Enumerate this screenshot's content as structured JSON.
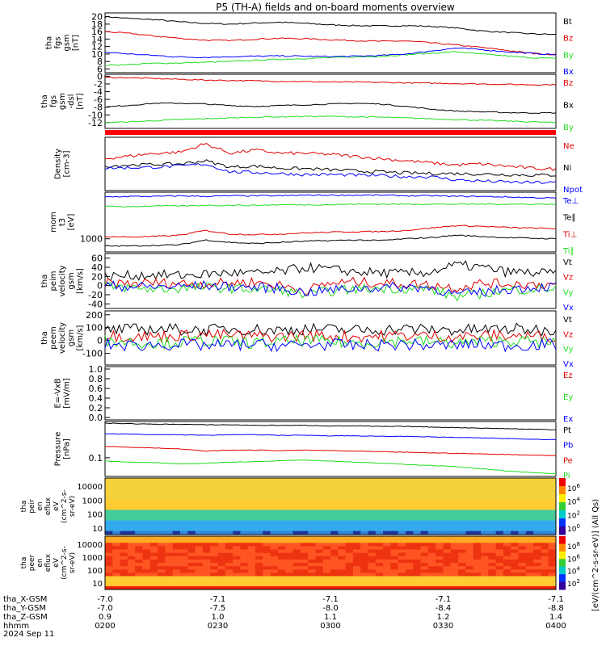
{
  "title": "P5 (TH-A) fields and on-board moments overview",
  "date_label": "2024 Sep 11",
  "colors": {
    "black": "#000000",
    "red": "#e00000",
    "green": "#22dd22",
    "blue": "#0000ff"
  },
  "chart_data": [
    {
      "type": "line",
      "id": "fgs_gsm",
      "ylabel_lines": [
        "tha",
        "fgs",
        "gsm",
        "[nT]"
      ],
      "yticks": [
        "20",
        "18",
        "16",
        "14",
        "12",
        "10",
        "8",
        "6"
      ],
      "ylim": [
        5,
        21
      ],
      "series": [
        {
          "name": "Bt",
          "color": "black",
          "values": [
            20,
            19.5,
            19.2,
            18.6,
            18.2,
            18,
            18.3,
            18.5,
            18.2,
            17.8,
            17.6,
            17.5,
            17.6,
            17.4,
            17,
            16.2,
            15.8,
            15.4,
            15.2
          ]
        },
        {
          "name": "Bz",
          "color": "red",
          "values": [
            16,
            15.5,
            14.8,
            14.2,
            13.7,
            13.6,
            14,
            14.2,
            14.1,
            13.8,
            13.6,
            13.4,
            13.5,
            13,
            12.4,
            11.8,
            11,
            10.2,
            9.8
          ]
        },
        {
          "name": "By",
          "color": "green",
          "values": [
            7,
            7.2,
            7.5,
            7.6,
            7.8,
            8,
            8.3,
            8.6,
            8.8,
            9,
            9.2,
            9.4,
            9.8,
            10.2,
            10.6,
            10,
            9.5,
            9,
            8.8
          ]
        },
        {
          "name": "Bx",
          "color": "blue",
          "values": [
            10.5,
            10,
            9.6,
            9.2,
            9.1,
            9.3,
            9.4,
            9.5,
            9.4,
            9.3,
            9.4,
            9.6,
            10,
            10.8,
            11.6,
            11.2,
            10.6,
            10.2,
            9.8
          ]
        }
      ]
    },
    {
      "type": "line",
      "id": "fgs_gsm_dsl",
      "ylabel_lines": [
        "tha",
        "fgs",
        "gsm",
        "-dsl",
        "[nT]"
      ],
      "yticks": [
        "0",
        "-2",
        "-4",
        "-6",
        "-8",
        "-10",
        "-12"
      ],
      "ylim": [
        -13.5,
        0.5
      ],
      "series": [
        {
          "name": "Bz",
          "color": "red",
          "values": [
            -0.3,
            -0.4,
            -0.6,
            -0.8,
            -1,
            -1.1,
            -1.2,
            -1.3,
            -1.4,
            -1.5,
            -1.5,
            -1.6,
            -1.7,
            -1.8,
            -1.9,
            -2,
            -2.1,
            -2.2,
            -2.2
          ]
        },
        {
          "name": "Bx",
          "color": "black",
          "values": [
            -8,
            -7.5,
            -7,
            -7,
            -7.2,
            -7.6,
            -7.8,
            -7.6,
            -7.4,
            -7.2,
            -7,
            -7.2,
            -7.8,
            -8.5,
            -9,
            -9.2,
            -9.4,
            -9.5,
            -9.5
          ]
        },
        {
          "name": "By",
          "color": "green",
          "values": [
            -12,
            -11.8,
            -11.5,
            -11.2,
            -11,
            -10.8,
            -10.6,
            -10.5,
            -10.4,
            -10.4,
            -10.5,
            -10.6,
            -10.8,
            -11,
            -11.2,
            -11.4,
            -11.6,
            -11.8,
            -12
          ]
        }
      ]
    },
    {
      "type": "line",
      "id": "density",
      "ylabel_lines": [
        "Density",
        "[cm-3]"
      ],
      "yticks": [],
      "ylim": [
        0,
        10
      ],
      "series": [
        {
          "name": "Ne",
          "color": "red",
          "values": [
            6,
            6.5,
            7,
            7.2,
            8.8,
            7,
            7.6,
            7,
            7,
            6.8,
            6.4,
            6,
            5.6,
            5.2,
            4.8,
            5,
            4.6,
            4.2,
            4
          ]
        },
        {
          "name": "Ni",
          "color": "black",
          "values": [
            4.6,
            4.8,
            4.9,
            5,
            5.6,
            4.4,
            4.6,
            4.2,
            4.1,
            3.9,
            3.7,
            3.5,
            3.3,
            3.2,
            3.2,
            3.1,
            3,
            2.9,
            2.9
          ]
        },
        {
          "name": "Npot",
          "color": "blue",
          "values": [
            4.2,
            4.3,
            4.4,
            4.6,
            5,
            3.5,
            3.4,
            3.2,
            3,
            3,
            2.9,
            2.8,
            2.6,
            2.6,
            2,
            1.8,
            1.6,
            1.5,
            1.5
          ]
        }
      ]
    },
    {
      "type": "line",
      "id": "mom_temp",
      "ylabel_lines": [
        "mom",
        "t3",
        "[eV]"
      ],
      "yticks": [
        "1000"
      ],
      "ylim": [
        0,
        10
      ],
      "series": [
        {
          "name": "Te⊥",
          "color": "blue",
          "values": [
            9.2,
            9.3,
            9.3,
            9.4,
            9.3,
            9.4,
            9.4,
            9.4,
            9.5,
            9.5,
            9.5,
            9.5,
            9.4,
            9.4,
            9.3,
            9.3,
            9.2,
            9.1,
            9
          ]
        },
        {
          "name": "Te∥",
          "color": "black",
          "values": [
            1,
            1,
            1.1,
            1.2,
            2,
            1.6,
            1.4,
            1.6,
            1.8,
            1.9,
            2,
            1.9,
            2.2,
            2.4,
            2.8,
            2.6,
            2.4,
            2.3,
            2.2
          ]
        },
        {
          "name": "Ti⊥",
          "color": "red",
          "values": [
            2.6,
            2.5,
            2.6,
            2.8,
            3.6,
            3,
            2.9,
            3,
            3.2,
            3.3,
            3.4,
            3.4,
            3.6,
            4,
            4.4,
            4.3,
            4.1,
            4,
            3.9
          ]
        },
        {
          "name": "Ti∥",
          "color": "green",
          "values": [
            7.6,
            7.6,
            7.7,
            7.7,
            7.8,
            7.8,
            7.8,
            7.9,
            7.9,
            7.9,
            8,
            8,
            8,
            8,
            8,
            8,
            8,
            8,
            8
          ]
        }
      ]
    },
    {
      "type": "line",
      "id": "peim_velocity",
      "ylabel_lines": [
        "tha",
        "peim",
        "velocity",
        "gsm",
        "[km/s]"
      ],
      "yticks": [
        "60",
        "40",
        "20",
        "0",
        "-20",
        "-40"
      ],
      "ylim": [
        -50,
        70
      ],
      "series": [
        {
          "name": "Vt",
          "color": "black",
          "values": [
            20,
            22,
            24,
            22,
            25,
            28,
            26,
            30,
            40,
            35,
            30,
            28,
            26,
            30,
            45,
            40,
            30,
            28,
            26
          ]
        },
        {
          "name": "Vz",
          "color": "red",
          "values": [
            5,
            4,
            6,
            5,
            4,
            6,
            8,
            0,
            -10,
            5,
            8,
            6,
            4,
            2,
            -5,
            5,
            4,
            3,
            2
          ]
        },
        {
          "name": "Vy",
          "color": "green",
          "values": [
            -2,
            -5,
            -8,
            -6,
            -4,
            -6,
            -8,
            -10,
            -20,
            -12,
            -8,
            -6,
            -6,
            -8,
            -25,
            -18,
            -10,
            -8,
            -6
          ]
        },
        {
          "name": "Vx",
          "color": "blue",
          "values": [
            0,
            -2,
            -3,
            -2,
            0,
            -2,
            -4,
            -6,
            -15,
            -10,
            -6,
            -4,
            -3,
            -4,
            -20,
            -15,
            -8,
            -4,
            -2
          ]
        }
      ]
    },
    {
      "type": "line",
      "id": "peem_velocity",
      "ylabel_lines": [
        "tha",
        "peem",
        "velocity",
        "gsm",
        "[km/s]"
      ],
      "yticks": [
        "200",
        "100",
        "0",
        "-100"
      ],
      "ylim": [
        -190,
        230
      ],
      "series": [
        {
          "name": "Vt",
          "color": "black",
          "values": [
            80,
            85,
            90,
            85,
            80,
            90,
            85,
            80,
            90,
            85,
            80,
            85,
            90,
            85,
            80,
            85,
            90,
            85,
            80
          ]
        },
        {
          "name": "Vz",
          "color": "red",
          "values": [
            40,
            35,
            30,
            40,
            45,
            40,
            35,
            30,
            40,
            35,
            30,
            35,
            40,
            35,
            30,
            35,
            40,
            35,
            30
          ]
        },
        {
          "name": "Vy",
          "color": "green",
          "values": [
            0,
            -10,
            -20,
            -10,
            0,
            -10,
            -20,
            -10,
            0,
            -10,
            -20,
            -10,
            0,
            -10,
            -20,
            -10,
            0,
            -10,
            -20
          ]
        },
        {
          "name": "Vx",
          "color": "blue",
          "values": [
            -30,
            -40,
            -35,
            -30,
            -40,
            -35,
            -30,
            -40,
            -35,
            -30,
            -40,
            -35,
            -30,
            -40,
            -35,
            -30,
            -40,
            -35,
            -30
          ]
        }
      ]
    },
    {
      "type": "line",
      "id": "efield",
      "ylabel_lines": [
        "E=-VxB",
        "[mV/m]"
      ],
      "yticks": [
        "1.0",
        "0.8",
        "0.6",
        "0.4",
        "0.2",
        "0.0"
      ],
      "ylim": [
        -0.05,
        1.05
      ],
      "series": [
        {
          "name": "Ez",
          "color": "red",
          "values": []
        },
        {
          "name": "Ey",
          "color": "green",
          "values": []
        },
        {
          "name": "Ex",
          "color": "blue",
          "values": []
        }
      ]
    },
    {
      "type": "line",
      "id": "pressure",
      "ylabel_lines": [
        "Pressure",
        "[nPa]"
      ],
      "yticks": [
        "0.1"
      ],
      "ylim": [
        0,
        10
      ],
      "series": [
        {
          "name": "Pt",
          "color": "black",
          "values": [
            9.7,
            9.6,
            9.5,
            9.5,
            9.4,
            9.4,
            9.3,
            9.3,
            9.3,
            9.2,
            9.2,
            9.1,
            9.1,
            9,
            8.9,
            8.8,
            8.7,
            8.6,
            8.5
          ]
        },
        {
          "name": "Pb",
          "color": "blue",
          "values": [
            7.8,
            7.7,
            7.6,
            7.6,
            7.5,
            7.6,
            7.6,
            7.5,
            7.5,
            7.4,
            7.4,
            7.3,
            7.3,
            7.2,
            7.1,
            7,
            6.9,
            6.8,
            6.7
          ]
        },
        {
          "name": "Pe",
          "color": "red",
          "values": [
            5.5,
            5.3,
            5.2,
            5,
            4.6,
            4.8,
            4.8,
            4.7,
            4.8,
            4.7,
            4.6,
            4.5,
            4.4,
            4.3,
            4.2,
            4.1,
            4,
            3.9,
            3.8
          ]
        },
        {
          "name": "Pi",
          "color": "green",
          "values": [
            2.8,
            2.6,
            2.5,
            2.3,
            2.4,
            2.6,
            2.7,
            2.9,
            3,
            2.8,
            2.6,
            2.4,
            2.2,
            2,
            1.8,
            1.4,
            1,
            0.7,
            0.5
          ]
        }
      ]
    },
    {
      "type": "heatmap",
      "id": "peir_spec",
      "ylabel_lines": [
        "tha",
        "peir",
        "en",
        "eflux",
        "eV",
        "(cm^2-s-",
        "sr-eV)"
      ],
      "yticks": [
        "10000",
        "1000",
        "100",
        "10"
      ],
      "colorbar_ticks": [
        "10^6",
        "10^4",
        "10^2",
        "10^0"
      ]
    },
    {
      "type": "heatmap",
      "id": "peer_spec",
      "ylabel_lines": [
        "tha",
        "peer",
        "en",
        "eflux",
        "eV",
        "(cm^2-s-",
        "sr-eV)"
      ],
      "yticks": [
        "10000",
        "1000",
        "100",
        "10"
      ],
      "colorbar_ticks": [
        "10^8",
        "10^6",
        "10^4",
        "10^2"
      ]
    }
  ],
  "colorbar_label": "[eV/(cm^2-s-sr-eV)] (All Qs)",
  "xaxis": {
    "rows": [
      {
        "label": "tha_X-GSM",
        "values": [
          "-7.0",
          "-7.1",
          "-7.1",
          "-7.1",
          "-7.1"
        ]
      },
      {
        "label": "tha_Y-GSM",
        "values": [
          "-7.0",
          "-7.5",
          "-8.0",
          "-8.4",
          "-8.8"
        ]
      },
      {
        "label": "tha_Z-GSM",
        "values": [
          "0.9",
          "1.0",
          "1.1",
          "1.2",
          "1.4"
        ]
      },
      {
        "label": "hhmm",
        "values": [
          "0200",
          "0230",
          "0300",
          "0330",
          "0400"
        ]
      }
    ]
  }
}
